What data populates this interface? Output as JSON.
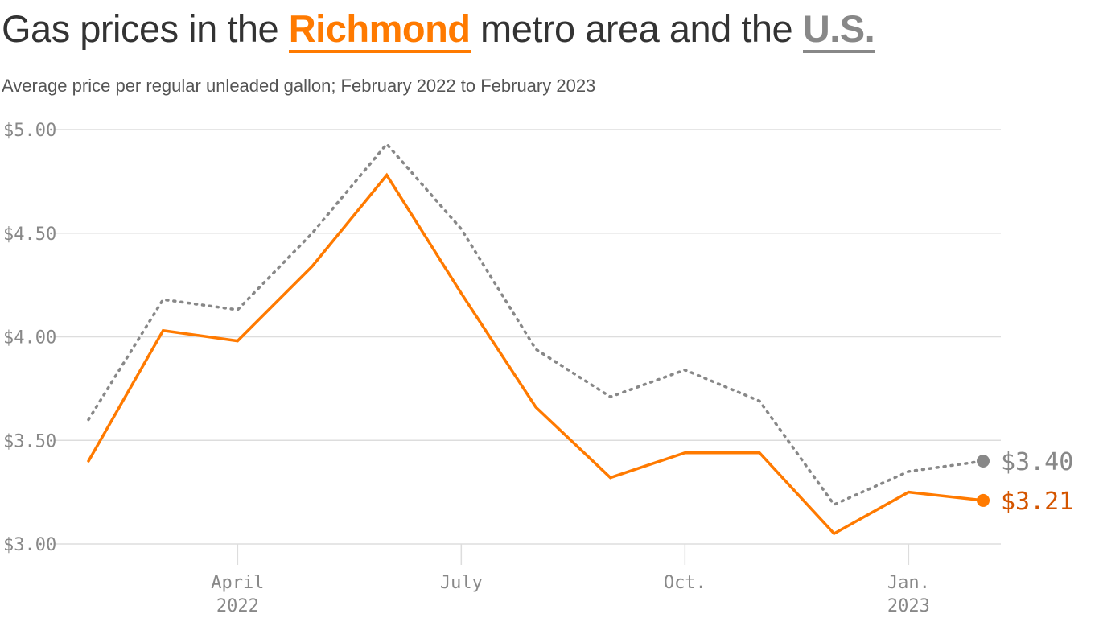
{
  "header": {
    "title_pre": "Gas prices in the ",
    "title_richmond": "Richmond",
    "title_mid": " metro area and the ",
    "title_us": "U.S.",
    "subtitle": "Average price per regular unleaded gallon; February 2022 to February 2023"
  },
  "colors": {
    "richmond": "#ff7a00",
    "us": "#888888",
    "richmond_label": "#d45500",
    "grid": "#dddddd",
    "axis_text": "#888888"
  },
  "chart_data": {
    "type": "line",
    "x": [
      "2022-02",
      "2022-03",
      "2022-04",
      "2022-05",
      "2022-06",
      "2022-07",
      "2022-08",
      "2022-09",
      "2022-10",
      "2022-11",
      "2022-12",
      "2023-01",
      "2023-02"
    ],
    "series": [
      {
        "name": "Richmond",
        "style": "solid",
        "values": [
          3.4,
          4.03,
          3.98,
          4.34,
          4.78,
          4.21,
          3.66,
          3.32,
          3.44,
          3.44,
          3.05,
          3.25,
          3.21
        ]
      },
      {
        "name": "U.S.",
        "style": "dotted",
        "values": [
          3.6,
          4.18,
          4.13,
          4.5,
          4.93,
          4.52,
          3.94,
          3.71,
          3.84,
          3.69,
          3.19,
          3.35,
          3.4
        ]
      }
    ],
    "end_labels": {
      "Richmond": "$3.21",
      "U.S.": "$3.40"
    },
    "ylim": [
      3.0,
      5.0
    ],
    "y_ticks": [
      {
        "value": 5.0,
        "label": "$5.00"
      },
      {
        "value": 4.5,
        "label": "$4.50"
      },
      {
        "value": 4.0,
        "label": "$4.00"
      },
      {
        "value": 3.5,
        "label": "$3.50"
      },
      {
        "value": 3.0,
        "label": "$3.00"
      }
    ],
    "x_ticks": [
      {
        "value": "2022-04",
        "label": "April",
        "sublabel": "2022"
      },
      {
        "value": "2022-07",
        "label": "July",
        "sublabel": ""
      },
      {
        "value": "2022-10",
        "label": "Oct.",
        "sublabel": ""
      },
      {
        "value": "2023-01",
        "label": "Jan.",
        "sublabel": "2023"
      }
    ],
    "grid": true,
    "legend": "title"
  }
}
